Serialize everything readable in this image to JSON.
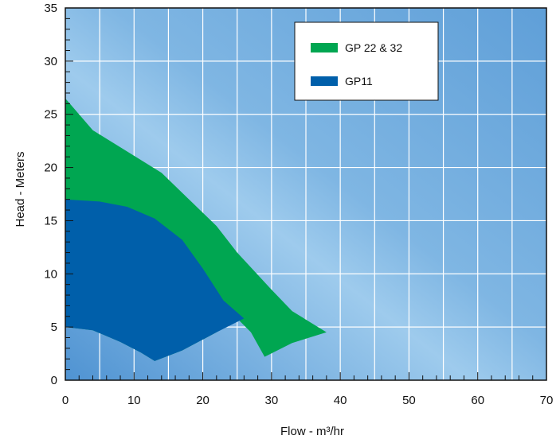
{
  "chart_data": {
    "type": "area",
    "xlabel": "Flow - m³/hr",
    "ylabel": "Head - Meters",
    "xlim": [
      0,
      70
    ],
    "ylim": [
      0,
      35
    ],
    "x_ticks": [
      "0",
      "10",
      "20",
      "30",
      "40",
      "50",
      "60",
      "70"
    ],
    "y_ticks": [
      "0",
      "5",
      "10",
      "15",
      "20",
      "25",
      "30",
      "35"
    ],
    "grid": true,
    "legend_position": "top-right",
    "series": [
      {
        "name": "GP 22 & 32",
        "color": "#00a651",
        "upper": [
          [
            0,
            26.5
          ],
          [
            4,
            23.5
          ],
          [
            9,
            21.5
          ],
          [
            14,
            19.5
          ],
          [
            18,
            17
          ],
          [
            22,
            14.5
          ],
          [
            25,
            12
          ],
          [
            30,
            8.5
          ],
          [
            33,
            6.5
          ],
          [
            38,
            4.5
          ]
        ],
        "lower": [
          [
            0,
            5
          ],
          [
            4,
            4.7
          ],
          [
            8,
            3.6
          ],
          [
            11,
            2.6
          ],
          [
            13,
            1.8
          ],
          [
            17,
            2.8
          ],
          [
            22,
            4.5
          ],
          [
            25,
            5.8
          ],
          [
            27,
            4.5
          ],
          [
            29,
            2.2
          ],
          [
            33,
            3.5
          ],
          [
            38,
            4.5
          ]
        ]
      },
      {
        "name": "GP11",
        "color": "#005faa",
        "upper": [
          [
            0,
            17
          ],
          [
            5,
            16.8
          ],
          [
            9,
            16.3
          ],
          [
            13,
            15.2
          ],
          [
            17,
            13.2
          ],
          [
            20,
            10.5
          ],
          [
            23,
            7.5
          ],
          [
            26,
            5.8
          ]
        ],
        "lower": [
          [
            0,
            5
          ],
          [
            4,
            4.7
          ],
          [
            8,
            3.6
          ],
          [
            11,
            2.6
          ],
          [
            13,
            1.8
          ],
          [
            17,
            2.8
          ],
          [
            22,
            4.5
          ],
          [
            26,
            5.8
          ]
        ]
      }
    ]
  }
}
